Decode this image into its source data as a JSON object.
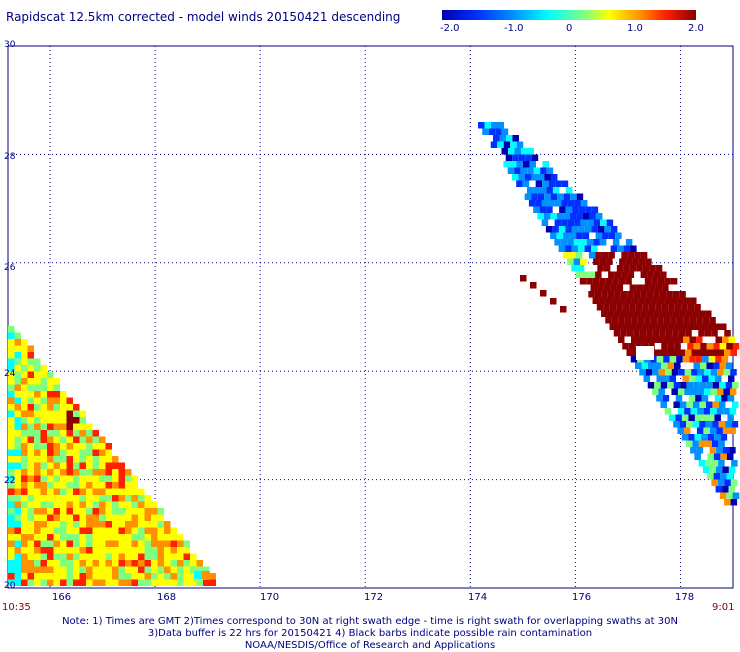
{
  "title": "Rapidscat 12.5km corrected - model winds 20150421 descending",
  "colorbar": {
    "labels": [
      "-2.0",
      "-1.0",
      "0",
      "1.0",
      "2.0"
    ],
    "colors": [
      "#0000b0",
      "#0030ff",
      "#0090ff",
      "#00ffff",
      "#7fff7f",
      "#ffff00",
      "#ff9000",
      "#ff2000",
      "#8b0000"
    ]
  },
  "axes": {
    "y_labels": [
      "30",
      "28",
      "26",
      "24",
      "22",
      "20"
    ],
    "x_labels": [
      "166",
      "168",
      "170",
      "172",
      "174",
      "176",
      "178"
    ]
  },
  "times": {
    "left": "10:35",
    "right": "9:01"
  },
  "notes": {
    "line1": "Note: 1) Times are GMT 2)Times correspond to 30N at right swath edge - time is right swath for overlapping swaths at 30N",
    "line2": "3)Data buffer is 22 hrs for 20150421 4) Black barbs indicate possible rain contamination",
    "line3": "NOAA/NESDIS/Office of Research and Applications"
  },
  "map": {
    "lon_range": [
      165.2,
      179.0
    ],
    "lat_range": [
      20,
      30
    ],
    "grid_lons": [
      166,
      168,
      170,
      172,
      174,
      176,
      178
    ],
    "grid_lats": [
      22,
      24,
      26,
      28
    ],
    "swaths": [
      "west-swath",
      "east-swath"
    ]
  }
}
